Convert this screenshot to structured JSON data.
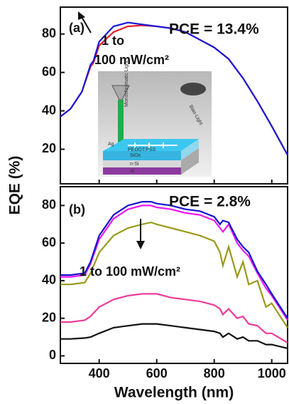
{
  "chart_data": [
    {
      "type": "line",
      "ylabel": "EQE (%)",
      "annotations": [
        "(a)",
        "1 to",
        "100 mW/cm²",
        "PCE = 13.4%"
      ],
      "inset_labels": [
        "Monochromatic Light",
        "Bias-Light",
        "Ag",
        "PEDOT:PSS",
        "SiOx",
        "n-Si",
        "Al"
      ],
      "x": [
        265,
        300,
        340,
        370,
        380,
        400,
        450,
        500,
        550,
        600,
        650,
        700,
        750,
        800,
        850,
        900,
        950,
        1000,
        1055
      ],
      "series": [
        {
          "color": "#1a1ad8",
          "values": [
            37,
            41,
            50,
            64,
            66,
            76,
            84,
            86,
            85,
            84,
            83,
            81,
            77,
            73,
            67,
            57,
            45,
            32,
            17
          ]
        },
        {
          "color": "#e8202a",
          "values": [
            37,
            41,
            50,
            63,
            65,
            74,
            81,
            84,
            84.5,
            84,
            83,
            81,
            77,
            73,
            67,
            57,
            45,
            32,
            17
          ]
        }
      ],
      "xlim": [
        265,
        1055
      ],
      "ylim": [
        2,
        94
      ],
      "xticks": [
        400,
        600,
        800,
        1000
      ],
      "yticks": [
        20,
        40,
        60,
        80
      ]
    },
    {
      "type": "line",
      "xlabel": "Wavelength (nm)",
      "annotations": [
        "(b)",
        "PCE = 2.8%",
        "1 to 100 mW/cm²"
      ],
      "x": [
        265,
        300,
        350,
        370,
        400,
        450,
        500,
        550,
        580,
        600,
        650,
        700,
        750,
        800,
        820,
        830,
        850,
        880,
        900,
        920,
        950,
        980,
        1000,
        1055
      ],
      "series": [
        {
          "color": "#1515d0",
          "values": [
            43,
            43,
            44,
            50,
            64,
            75,
            80,
            82,
            82,
            81,
            80,
            78,
            77,
            74,
            70,
            72,
            71,
            62,
            58,
            55,
            45,
            38,
            33,
            20
          ]
        },
        {
          "color": "#ee18ee",
          "values": [
            42,
            42,
            43,
            49,
            62,
            73,
            78,
            80,
            80,
            79,
            78,
            76,
            75,
            72,
            68,
            66,
            70,
            60,
            56,
            53,
            44,
            36,
            32,
            19
          ]
        },
        {
          "color": "#9a9a1a",
          "values": [
            38,
            38,
            39,
            44,
            55,
            64,
            68,
            70,
            71,
            70,
            68,
            66,
            64,
            61,
            55,
            48,
            58,
            42,
            50,
            38,
            40,
            26,
            28,
            15
          ]
        },
        {
          "color": "#ee3c9c",
          "values": [
            18,
            18,
            19,
            21,
            26,
            30,
            32,
            33,
            33,
            33,
            31,
            30,
            29,
            27,
            25,
            22,
            25,
            20,
            21,
            17,
            16,
            12,
            12,
            7
          ]
        },
        {
          "color": "#111111",
          "values": [
            9,
            9,
            9.5,
            10,
            12,
            15,
            16,
            17,
            17,
            17,
            16,
            15,
            14,
            13,
            12,
            10,
            12,
            9,
            10,
            8,
            8,
            6,
            6,
            4
          ]
        }
      ],
      "xlim": [
        265,
        1055
      ],
      "ylim": [
        -4,
        90
      ],
      "xticks": [
        400,
        600,
        800,
        1000
      ],
      "yticks": [
        0,
        20,
        40,
        60,
        80
      ]
    }
  ]
}
